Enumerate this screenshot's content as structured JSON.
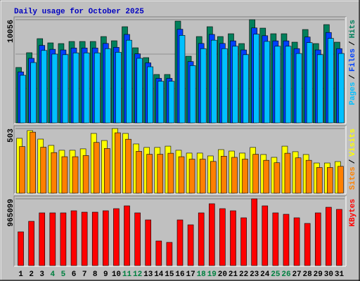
{
  "chart_data": [
    {
      "type": "bar",
      "title": "Daily usage for October 2025",
      "categories": [
        "1",
        "2",
        "3",
        "4",
        "5",
        "6",
        "7",
        "8",
        "9",
        "10",
        "11",
        "12",
        "13",
        "14",
        "15",
        "16",
        "17",
        "18",
        "19",
        "20",
        "21",
        "22",
        "23",
        "24",
        "25",
        "26",
        "27",
        "28",
        "29",
        "30",
        "31"
      ],
      "series": [
        {
          "name": "Hits",
          "color": "#00805c",
          "values": [
            5404,
            6840,
            8208,
            7798,
            7729,
            7934,
            7934,
            7934,
            8413,
            8003,
            9371,
            7319,
            6361,
            4720,
            4720,
            9918,
            6498,
            8413,
            9371,
            8413,
            8687,
            7729,
            10056,
            9234,
            8687,
            8687,
            7866,
            9097,
            7729,
            9576,
            7866
          ]
        },
        {
          "name": "Files",
          "color": "#0040ff",
          "values": [
            4972,
            6293,
            7551,
            7174,
            7111,
            7299,
            7299,
            7299,
            7740,
            7363,
            8621,
            6733,
            5852,
            4342,
            4342,
            9125,
            5978,
            7740,
            8621,
            7740,
            7992,
            7111,
            9251,
            8495,
            7992,
            7992,
            7237,
            8369,
            7111,
            8810,
            7237
          ]
        },
        {
          "name": "Pages",
          "color": "#00c0ff",
          "values": [
            4647,
            5882,
            7059,
            6706,
            6647,
            6823,
            6823,
            6823,
            7235,
            6883,
            8059,
            6294,
            5470,
            4059,
            4059,
            8529,
            5588,
            7235,
            8059,
            7235,
            7471,
            6647,
            8648,
            7941,
            7471,
            7471,
            6765,
            7823,
            6647,
            8235,
            6765
          ]
        }
      ],
      "ylim": [
        0,
        10056
      ],
      "yticks": [
        10056
      ],
      "legend_separator": "/"
    },
    {
      "type": "bar",
      "series": [
        {
          "name": "Visits",
          "color": "#ffff00",
          "values": [
            427,
            487,
            421,
            372,
            334,
            334,
            345,
            465,
            410,
            503,
            465,
            383,
            356,
            356,
            366,
            334,
            312,
            312,
            290,
            339,
            328,
            312,
            356,
            301,
            279,
            366,
            323,
            301,
            235,
            235,
            246
          ]
        },
        {
          "name": "Sites",
          "color": "#ff8000",
          "values": [
            363,
            475,
            358,
            316,
            284,
            284,
            293,
            395,
            348,
            470,
            420,
            326,
            303,
            303,
            311,
            284,
            265,
            265,
            247,
            288,
            279,
            265,
            303,
            256,
            237,
            311,
            275,
            256,
            200,
            200,
            209
          ]
        }
      ],
      "ylim": [
        0,
        503
      ],
      "yticks": [
        503
      ],
      "legend_separator": "/"
    },
    {
      "type": "bar",
      "series": [
        {
          "name": "KBytes",
          "color": "#ff0000",
          "values": [
            487632,
            640017,
            761925,
            761925,
            761925,
            792402,
            772084,
            772084,
            792402,
            822879,
            863515,
            761925,
            660335,
            355565,
            335247,
            660335,
            589222,
            761925,
            893992,
            822879,
            792402,
            690812,
            965099,
            863515,
            761925,
            741607,
            690812,
            609540,
            761925,
            843197,
            812720
          ]
        }
      ],
      "ylim": [
        0,
        965099
      ],
      "yticks": [
        965099
      ],
      "label_color": "#000000",
      "weekend_label_color": "#008040",
      "weekend_indices": [
        3,
        4,
        10,
        11,
        17,
        18,
        24,
        25
      ]
    }
  ]
}
